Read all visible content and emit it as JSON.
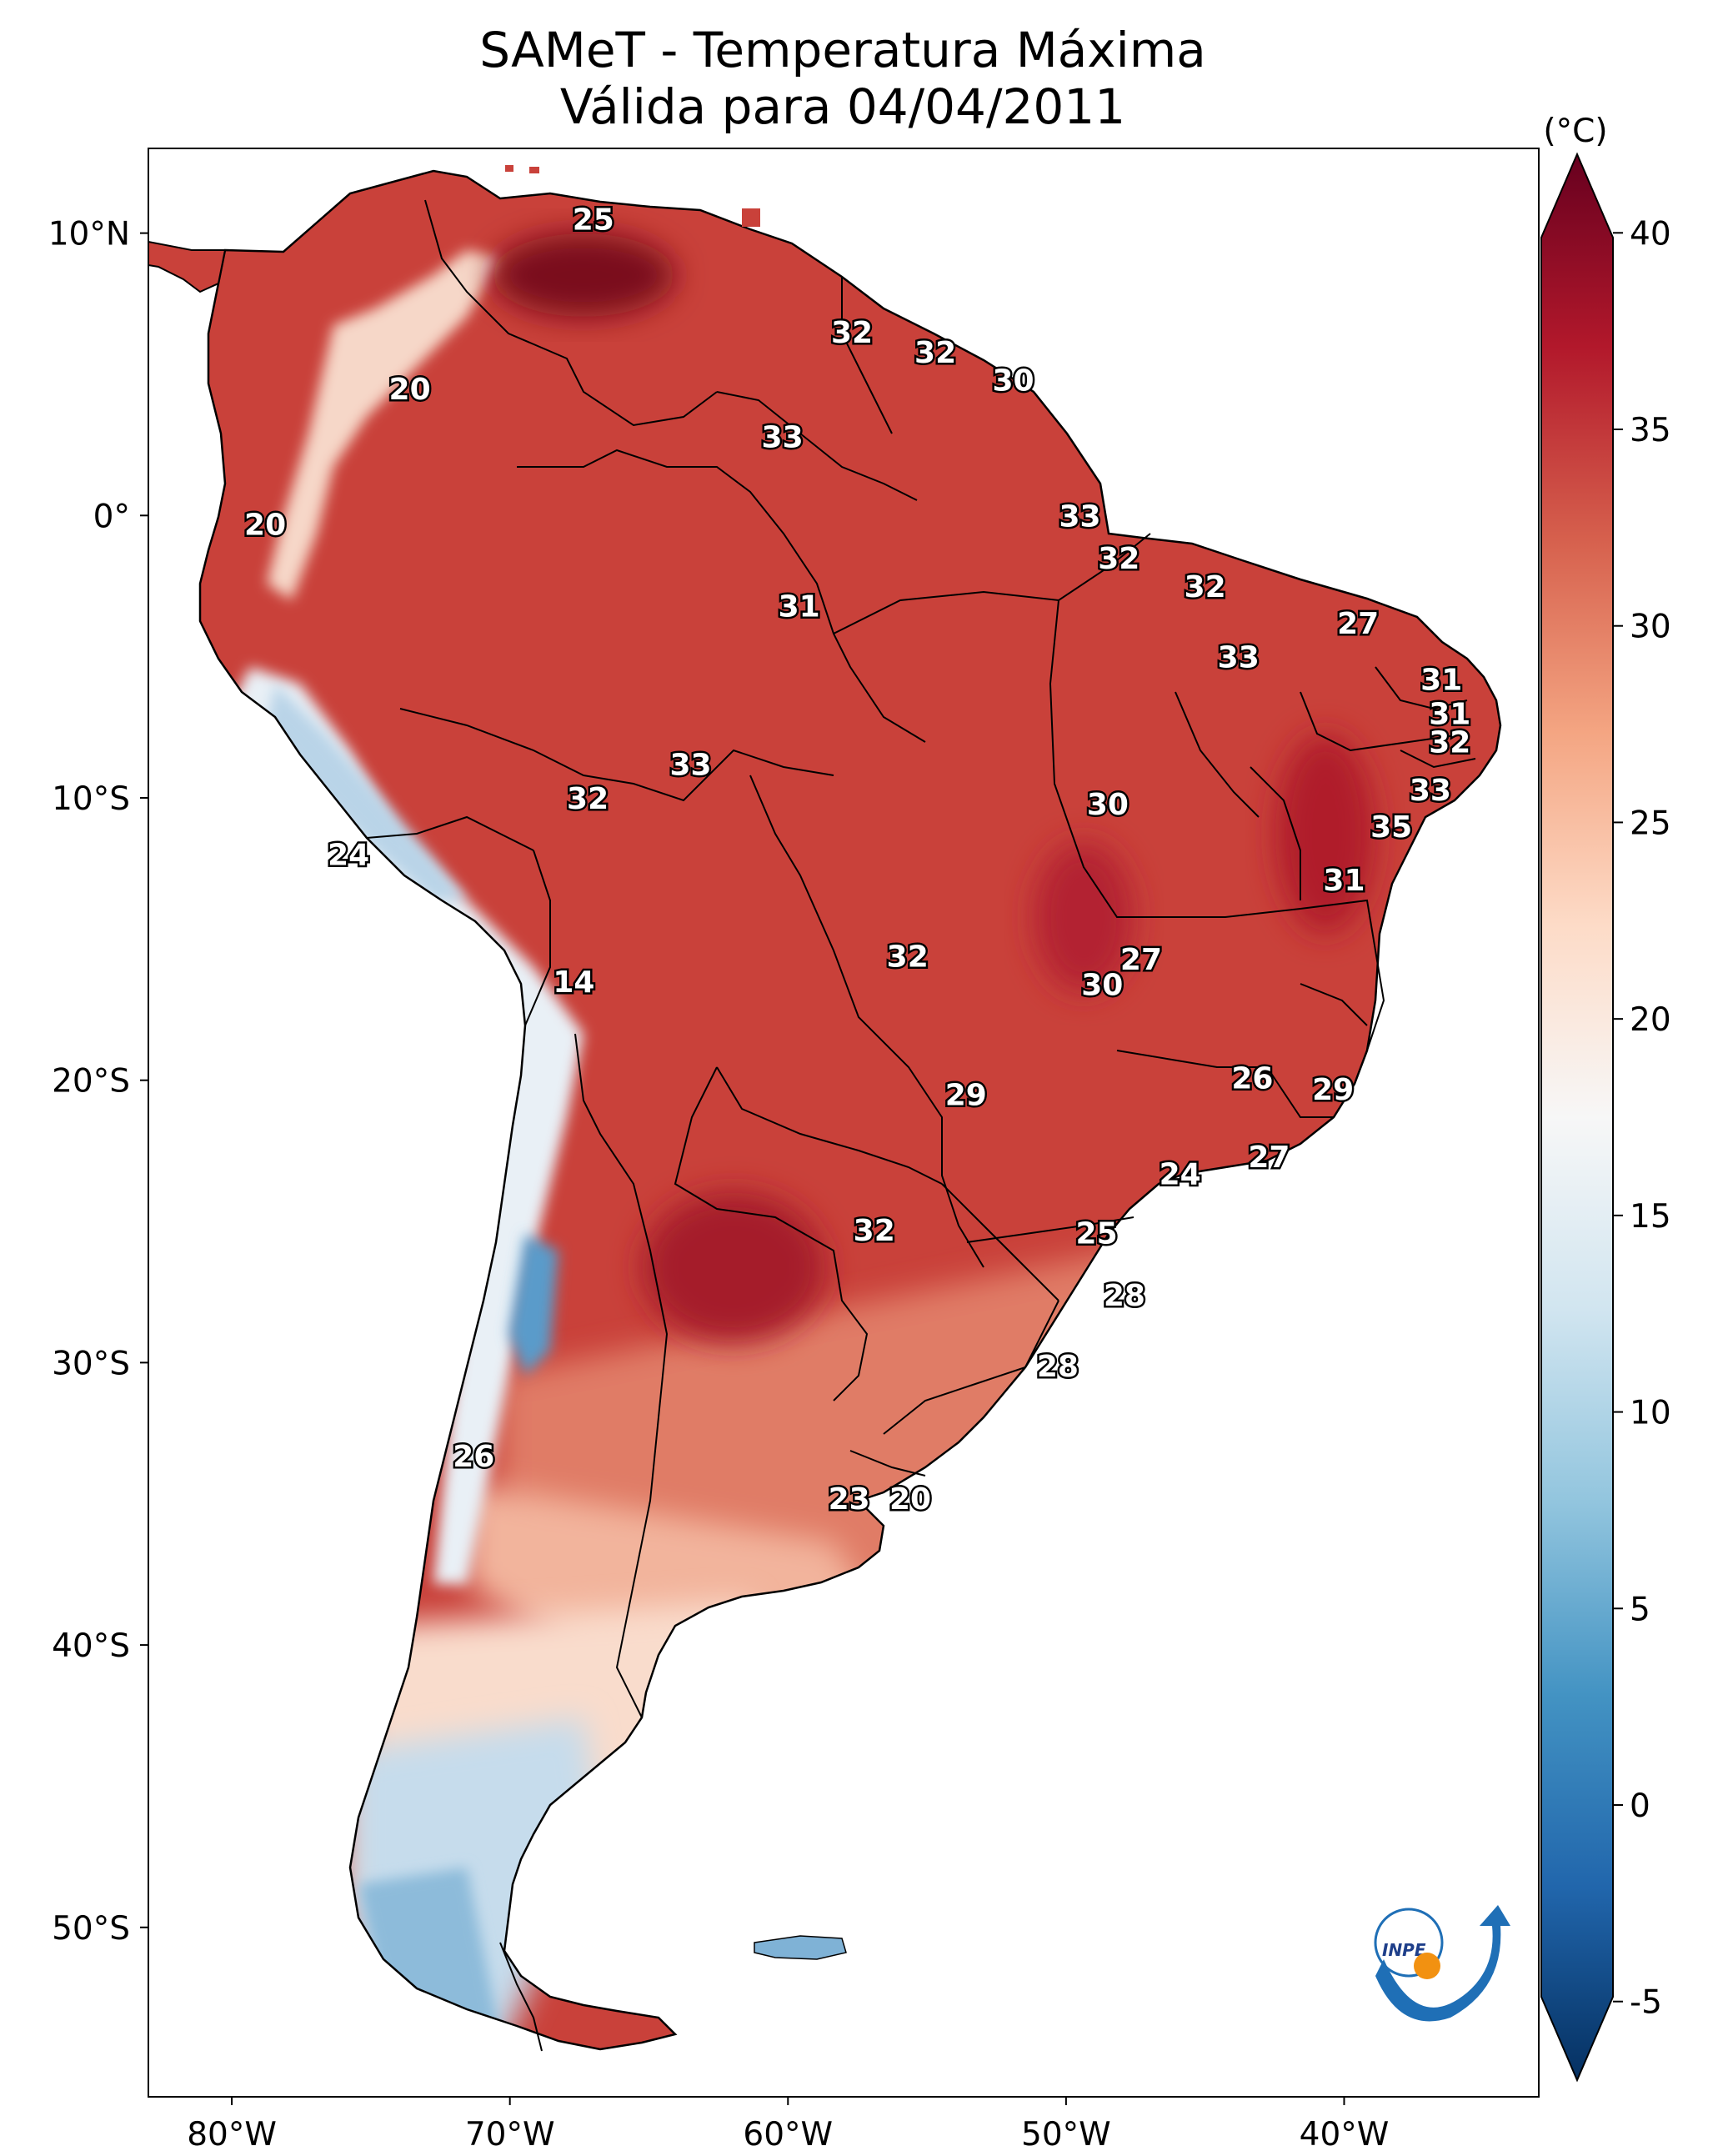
{
  "title": {
    "line1": "SAMeT - Temperatura Máxima",
    "line2": "Válida para 04/04/2011"
  },
  "axes": {
    "lon_ticks": [
      "80°W",
      "70°W",
      "60°W",
      "50°W",
      "40°W"
    ],
    "lat_ticks": [
      "10°N",
      "0°",
      "10°S",
      "20°S",
      "30°S",
      "40°S",
      "50°S"
    ]
  },
  "colorbar": {
    "unit": "(°C)",
    "min": -7,
    "max": 42,
    "ticks": [
      "40",
      "35",
      "30",
      "25",
      "20",
      "15",
      "10",
      "5",
      "0",
      "-5"
    ],
    "colors": [
      "#053061",
      "#2166ac",
      "#4393c3",
      "#92c5de",
      "#d1e5f0",
      "#f7f7f7",
      "#fddbc7",
      "#f4a582",
      "#d6604d",
      "#b2182b",
      "#67001f"
    ]
  },
  "chart_data": {
    "type": "heatmap",
    "title": "SAMeT - Temperatura Máxima / Válida para 04/04/2011",
    "units": "°C",
    "lon_range": [
      -83,
      -33
    ],
    "lat_range": [
      -56,
      13
    ],
    "value_range": [
      -5,
      40
    ],
    "labels": [
      {
        "lon": -67,
        "lat": 10.5,
        "value": "25"
      },
      {
        "lon": -57.7,
        "lat": 6.5,
        "value": "32"
      },
      {
        "lon": -54.7,
        "lat": 5.8,
        "value": "32"
      },
      {
        "lon": -51.9,
        "lat": 4.8,
        "value": "30"
      },
      {
        "lon": -73.6,
        "lat": 4.5,
        "value": "20"
      },
      {
        "lon": -60.2,
        "lat": 2.8,
        "value": "33"
      },
      {
        "lon": -78.8,
        "lat": -0.3,
        "value": "20"
      },
      {
        "lon": -49.5,
        "lat": 0,
        "value": "33"
      },
      {
        "lon": -48.1,
        "lat": -1.5,
        "value": "32"
      },
      {
        "lon": -59.6,
        "lat": -3.2,
        "value": "31"
      },
      {
        "lon": -45,
        "lat": -2.5,
        "value": "32"
      },
      {
        "lon": -39.5,
        "lat": -3.8,
        "value": "27"
      },
      {
        "lon": -43.8,
        "lat": -5,
        "value": "33"
      },
      {
        "lon": -36.5,
        "lat": -5.8,
        "value": "31"
      },
      {
        "lon": -36.2,
        "lat": -7,
        "value": "31"
      },
      {
        "lon": -36.2,
        "lat": -8,
        "value": "32"
      },
      {
        "lon": -63.5,
        "lat": -8.8,
        "value": "33"
      },
      {
        "lon": -67.2,
        "lat": -10,
        "value": "32"
      },
      {
        "lon": -48.5,
        "lat": -10.2,
        "value": "30"
      },
      {
        "lon": -36.9,
        "lat": -9.7,
        "value": "33"
      },
      {
        "lon": -38.3,
        "lat": -11,
        "value": "35"
      },
      {
        "lon": -40,
        "lat": -12.9,
        "value": "31"
      },
      {
        "lon": -75.8,
        "lat": -12,
        "value": "24"
      },
      {
        "lon": -47.3,
        "lat": -15.7,
        "value": "27"
      },
      {
        "lon": -55.7,
        "lat": -15.6,
        "value": "32"
      },
      {
        "lon": -48.7,
        "lat": -16.6,
        "value": "30"
      },
      {
        "lon": -67.7,
        "lat": -16.5,
        "value": "14"
      },
      {
        "lon": -43.3,
        "lat": -19.9,
        "value": "26"
      },
      {
        "lon": -53.6,
        "lat": -20.5,
        "value": "29"
      },
      {
        "lon": -40.4,
        "lat": -20.3,
        "value": "29"
      },
      {
        "lon": -42.7,
        "lat": -22.7,
        "value": "27"
      },
      {
        "lon": -45.9,
        "lat": -23.3,
        "value": "24"
      },
      {
        "lon": -48.9,
        "lat": -25.4,
        "value": "25"
      },
      {
        "lon": -56.9,
        "lat": -25.3,
        "value": "32"
      },
      {
        "lon": -47.9,
        "lat": -27.6,
        "value": "28"
      },
      {
        "lon": -71.3,
        "lat": -33.3,
        "value": "26"
      },
      {
        "lon": -50.3,
        "lat": -30.1,
        "value": "28"
      },
      {
        "lon": -57.8,
        "lat": -34.8,
        "value": "23"
      },
      {
        "lon": -55.6,
        "lat": -34.8,
        "value": "20"
      }
    ]
  }
}
